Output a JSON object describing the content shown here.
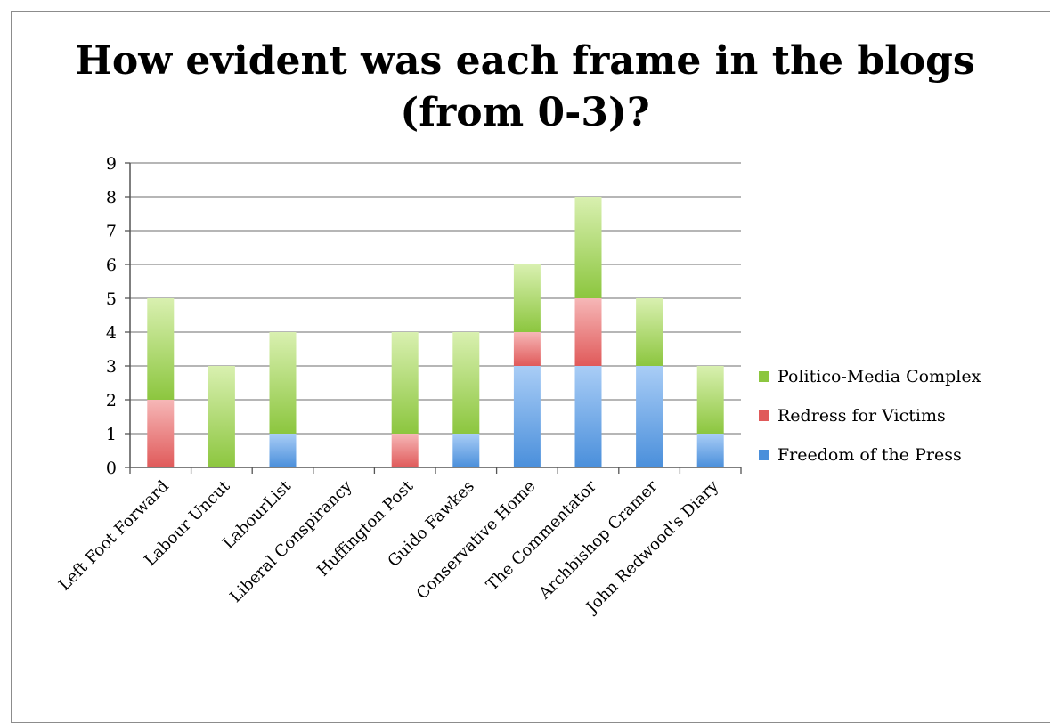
{
  "chart_data": {
    "type": "bar",
    "stacked": true,
    "title_line1": "How evident was each frame in the blogs",
    "title_line2": "(from 0-3)?",
    "xlabel": "",
    "ylabel": "",
    "ylim": [
      0,
      9
    ],
    "yticks": [
      "0",
      "1",
      "2",
      "3",
      "4",
      "5",
      "6",
      "7",
      "8",
      "9"
    ],
    "grid": true,
    "legend_position": "right",
    "categories": [
      "Left Foot Forward",
      "Labour Uncut",
      "LabourList",
      "Liberal Conspirancy",
      "Huffington Post",
      "Guido Fawkes",
      "Conservative Home",
      "The Commentator",
      "Archbishop Cramer",
      "John Redwood's Diary"
    ],
    "series": [
      {
        "name": "Freedom of the Press",
        "color": "#4a8fdb",
        "values": [
          0,
          0,
          1,
          0,
          0,
          1,
          3,
          3,
          3,
          1
        ]
      },
      {
        "name": "Redress for Victims",
        "color": "#e05a5a",
        "values": [
          2,
          0,
          0,
          0,
          1,
          0,
          1,
          2,
          0,
          0
        ]
      },
      {
        "name": "Politico-Media Complex",
        "color": "#8cc63f",
        "values": [
          3,
          3,
          3,
          0,
          3,
          3,
          2,
          3,
          2,
          2
        ]
      }
    ]
  }
}
